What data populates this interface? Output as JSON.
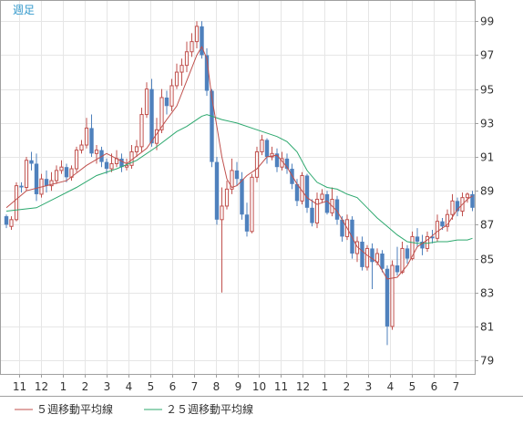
{
  "chart_data": {
    "type": "candlestick",
    "period_label": "週足",
    "y_axis": {
      "ticks": [
        79,
        81,
        83,
        85,
        87,
        89,
        91,
        93,
        95,
        97,
        99
      ],
      "ylim": [
        78.2,
        100.2
      ]
    },
    "x_axis": {
      "tick_labels": [
        "11",
        "12",
        "1",
        "2",
        "3",
        "4",
        "5",
        "6",
        "7",
        "8",
        "9",
        "10",
        "11",
        "12",
        "1",
        "2",
        "3",
        "4",
        "5",
        "6",
        "7"
      ]
    },
    "grid": true,
    "legend_position": "bottom-left",
    "colors": {
      "up": "#c0504d",
      "down": "#4f81bd",
      "ma5": "#c0504d",
      "ma25": "#2ca86e",
      "grid": "#e6e6e6",
      "border": "#a0a0a0"
    },
    "series": [
      {
        "name": "５週移動平均線",
        "color": "#c0504d",
        "type": "line"
      },
      {
        "name": "２５週移動平均線",
        "color": "#2ca86e",
        "type": "line"
      }
    ],
    "candles": [
      [
        87.5,
        87.0,
        87.6,
        86.8
      ],
      [
        86.9,
        87.3,
        87.5,
        86.7
      ],
      [
        87.3,
        89.3,
        89.5,
        87.2
      ],
      [
        89.3,
        89.2,
        89.5,
        88.9
      ],
      [
        89.2,
        90.8,
        91.0,
        89.0
      ],
      [
        90.8,
        90.6,
        91.3,
        90.2
      ],
      [
        90.6,
        88.8,
        91.2,
        88.4
      ],
      [
        88.8,
        89.7,
        90.0,
        88.6
      ],
      [
        89.7,
        89.3,
        90.2,
        88.9
      ],
      [
        89.3,
        89.6,
        90.1,
        89.0
      ],
      [
        89.6,
        90.2,
        90.5,
        89.4
      ],
      [
        90.2,
        90.4,
        90.8,
        90.0
      ],
      [
        90.4,
        89.8,
        90.6,
        89.5
      ],
      [
        89.8,
        90.3,
        90.5,
        89.6
      ],
      [
        90.3,
        91.4,
        91.6,
        90.1
      ],
      [
        91.4,
        91.7,
        92.0,
        91.2
      ],
      [
        91.7,
        92.7,
        93.3,
        91.5
      ],
      [
        92.7,
        91.2,
        93.5,
        91.0
      ],
      [
        91.2,
        91.4,
        91.7,
        90.6
      ],
      [
        91.4,
        90.7,
        91.6,
        90.4
      ],
      [
        90.7,
        90.3,
        90.9,
        90.0
      ],
      [
        90.3,
        90.6,
        91.2,
        90.1
      ],
      [
        90.6,
        90.9,
        91.4,
        90.4
      ],
      [
        90.9,
        90.4,
        91.2,
        90.1
      ],
      [
        90.4,
        90.5,
        90.9,
        90.2
      ],
      [
        90.5,
        91.3,
        91.7,
        90.3
      ],
      [
        91.3,
        91.6,
        92.0,
        91.0
      ],
      [
        91.6,
        93.5,
        93.9,
        91.3
      ],
      [
        93.5,
        95.0,
        95.4,
        93.3
      ],
      [
        95.0,
        91.8,
        95.6,
        91.6
      ],
      [
        91.8,
        92.6,
        93.3,
        91.4
      ],
      [
        92.6,
        94.5,
        95.0,
        92.4
      ],
      [
        94.5,
        94.0,
        94.9,
        93.5
      ],
      [
        94.0,
        95.2,
        95.6,
        93.7
      ],
      [
        95.2,
        96.0,
        96.5,
        95.0
      ],
      [
        96.0,
        96.4,
        96.8,
        95.2
      ],
      [
        96.4,
        97.2,
        97.8,
        96.0
      ],
      [
        97.2,
        97.8,
        98.3,
        96.9
      ],
      [
        97.8,
        98.7,
        99.0,
        97.4
      ],
      [
        98.7,
        97.0,
        99.0,
        96.8
      ],
      [
        97.0,
        94.9,
        97.4,
        94.6
      ],
      [
        94.9,
        90.7,
        95.0,
        90.4
      ],
      [
        90.7,
        87.3,
        91.0,
        87.0
      ],
      [
        87.3,
        88.1,
        89.2,
        83.0
      ],
      [
        88.1,
        89.1,
        89.6,
        87.9
      ],
      [
        89.1,
        90.2,
        90.9,
        88.8
      ],
      [
        90.2,
        89.7,
        90.7,
        89.3
      ],
      [
        89.7,
        87.6,
        90.1,
        87.3
      ],
      [
        87.6,
        86.6,
        88.3,
        86.3
      ],
      [
        86.6,
        89.8,
        90.0,
        86.5
      ],
      [
        89.8,
        91.3,
        91.6,
        89.5
      ],
      [
        91.3,
        92.0,
        92.3,
        91.1
      ],
      [
        92.0,
        91.0,
        92.1,
        90.6
      ],
      [
        91.0,
        91.2,
        91.6,
        90.8
      ],
      [
        91.2,
        90.4,
        91.5,
        90.1
      ],
      [
        90.4,
        90.9,
        91.3,
        90.2
      ],
      [
        90.9,
        90.3,
        91.2,
        90.0
      ],
      [
        90.3,
        89.4,
        90.6,
        89.1
      ],
      [
        89.4,
        88.4,
        89.7,
        88.1
      ],
      [
        88.4,
        89.9,
        90.1,
        88.2
      ],
      [
        89.9,
        88.0,
        90.0,
        87.7
      ],
      [
        88.0,
        87.1,
        88.5,
        86.9
      ],
      [
        87.1,
        88.5,
        88.9,
        86.8
      ],
      [
        88.5,
        88.8,
        89.1,
        88.3
      ],
      [
        88.8,
        87.7,
        89.0,
        87.6
      ],
      [
        87.7,
        88.5,
        89.2,
        87.5
      ],
      [
        88.5,
        87.3,
        88.7,
        87.0
      ],
      [
        87.3,
        86.3,
        87.5,
        86.0
      ],
      [
        86.3,
        87.3,
        87.6,
        86.1
      ],
      [
        87.3,
        85.3,
        87.5,
        85.0
      ],
      [
        85.3,
        86.0,
        86.3,
        84.8
      ],
      [
        86.0,
        84.5,
        86.3,
        84.3
      ],
      [
        84.5,
        85.6,
        85.8,
        84.3
      ],
      [
        85.6,
        84.8,
        85.9,
        83.2
      ],
      [
        84.8,
        85.3,
        85.6,
        84.6
      ],
      [
        85.3,
        84.4,
        85.5,
        84.2
      ],
      [
        84.4,
        81.0,
        84.6,
        79.9
      ],
      [
        81.0,
        84.6,
        84.9,
        80.8
      ],
      [
        84.6,
        84.2,
        85.7,
        84.0
      ],
      [
        84.2,
        85.6,
        86.0,
        84.1
      ],
      [
        85.6,
        85.0,
        85.8,
        84.7
      ],
      [
        85.0,
        86.3,
        86.6,
        84.9
      ],
      [
        86.3,
        86.0,
        86.8,
        85.7
      ],
      [
        86.0,
        85.6,
        86.4,
        85.2
      ],
      [
        85.6,
        86.3,
        86.6,
        85.4
      ],
      [
        86.3,
        86.2,
        86.7,
        85.9
      ],
      [
        86.2,
        87.2,
        87.6,
        86.0
      ],
      [
        87.2,
        86.9,
        87.4,
        86.7
      ],
      [
        86.9,
        87.6,
        87.9,
        86.6
      ],
      [
        87.6,
        88.4,
        88.8,
        87.3
      ],
      [
        88.4,
        87.8,
        88.6,
        87.5
      ],
      [
        87.8,
        88.6,
        88.9,
        87.5
      ],
      [
        88.6,
        88.8,
        88.9,
        88.3
      ],
      [
        88.8,
        88.0,
        89.0,
        87.8
      ]
    ],
    "ma5": [
      [
        0,
        88.0
      ],
      [
        4,
        89.0
      ],
      [
        8,
        89.3
      ],
      [
        12,
        89.6
      ],
      [
        16,
        90.5
      ],
      [
        20,
        91.2
      ],
      [
        24,
        90.6
      ],
      [
        28,
        91.5
      ],
      [
        32,
        93.2
      ],
      [
        34,
        94.0
      ],
      [
        36,
        95.5
      ],
      [
        38,
        97.0
      ],
      [
        39,
        97.5
      ],
      [
        40,
        96.8
      ],
      [
        41,
        94.5
      ],
      [
        42,
        92.8
      ],
      [
        43,
        91.0
      ],
      [
        44,
        89.7
      ],
      [
        45,
        89.2
      ],
      [
        46,
        89.3
      ],
      [
        48,
        89.9
      ],
      [
        50,
        90.3
      ],
      [
        52,
        91.0
      ],
      [
        54,
        91.1
      ],
      [
        56,
        90.4
      ],
      [
        58,
        89.4
      ],
      [
        60,
        88.6
      ],
      [
        62,
        88.2
      ],
      [
        64,
        88.4
      ],
      [
        66,
        87.8
      ],
      [
        68,
        86.8
      ],
      [
        70,
        85.7
      ],
      [
        72,
        85.2
      ],
      [
        74,
        84.8
      ],
      [
        76,
        83.8
      ],
      [
        78,
        83.9
      ],
      [
        80,
        84.6
      ],
      [
        82,
        85.7
      ],
      [
        84,
        86.1
      ],
      [
        86,
        86.6
      ],
      [
        88,
        87.0
      ],
      [
        90,
        87.9
      ],
      [
        92,
        88.5
      ],
      [
        93,
        88.7
      ]
    ],
    "ma25": [
      [
        0,
        87.8
      ],
      [
        6,
        88.0
      ],
      [
        10,
        88.6
      ],
      [
        14,
        89.2
      ],
      [
        18,
        89.9
      ],
      [
        22,
        90.3
      ],
      [
        26,
        90.8
      ],
      [
        30,
        91.6
      ],
      [
        34,
        92.5
      ],
      [
        36,
        92.8
      ],
      [
        39,
        93.4
      ],
      [
        40,
        93.5
      ],
      [
        43,
        93.2
      ],
      [
        46,
        93.0
      ],
      [
        50,
        92.6
      ],
      [
        54,
        92.2
      ],
      [
        56,
        91.9
      ],
      [
        58,
        91.3
      ],
      [
        60,
        90.2
      ],
      [
        62,
        89.5
      ],
      [
        64,
        89.2
      ],
      [
        66,
        89.1
      ],
      [
        68,
        88.8
      ],
      [
        70,
        88.6
      ],
      [
        72,
        88.0
      ],
      [
        74,
        87.4
      ],
      [
        76,
        86.9
      ],
      [
        78,
        86.4
      ],
      [
        80,
        86.0
      ],
      [
        82,
        85.9
      ],
      [
        84,
        85.9
      ],
      [
        86,
        86.0
      ],
      [
        88,
        86.0
      ],
      [
        90,
        86.1
      ],
      [
        92,
        86.1
      ],
      [
        93,
        86.2
      ]
    ]
  }
}
